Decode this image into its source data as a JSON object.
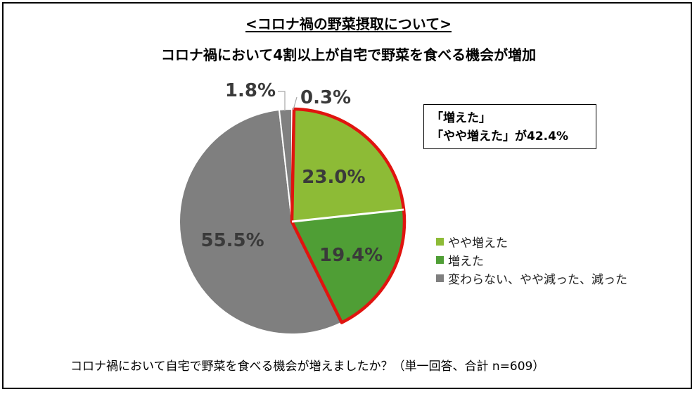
{
  "title": "<コロナ禍の野菜摂取について>",
  "subtitle": "コロナ禍において4割以上が自宅で野菜を食べる機会が増加",
  "callout": {
    "line1": "「増えた」",
    "line2": "「やや増えた」が42.4%"
  },
  "footnote": "コロナ禍において自宅で野菜を食べる機会が増えましたか？（単一回答、合計 n=609）",
  "chart_data": {
    "type": "pie",
    "slices": [
      {
        "name": "0.3%",
        "value": 0.3,
        "label": "0.3%",
        "color": "#ffffff"
      },
      {
        "name": "やや増えた",
        "value": 23.0,
        "label": "23.0%",
        "color": "#8dbb36"
      },
      {
        "name": "増えた",
        "value": 19.4,
        "label": "19.4%",
        "color": "#4f9e35"
      },
      {
        "name": "変わらない、やや減った、減った",
        "value": 55.5,
        "label": "55.5%",
        "color": "#7f7f7f"
      },
      {
        "name": "1.8%",
        "value": 1.8,
        "label": "1.8%",
        "color": "#808080"
      }
    ],
    "legend": [
      {
        "label": "やや増えた",
        "color": "#8dbb36"
      },
      {
        "label": "増えた",
        "color": "#4f9e35"
      },
      {
        "label": "変わらない、やや減った、減った",
        "color": "#7f7f7f"
      }
    ],
    "highlight_color": "#e0140f",
    "legend_position": "right"
  }
}
